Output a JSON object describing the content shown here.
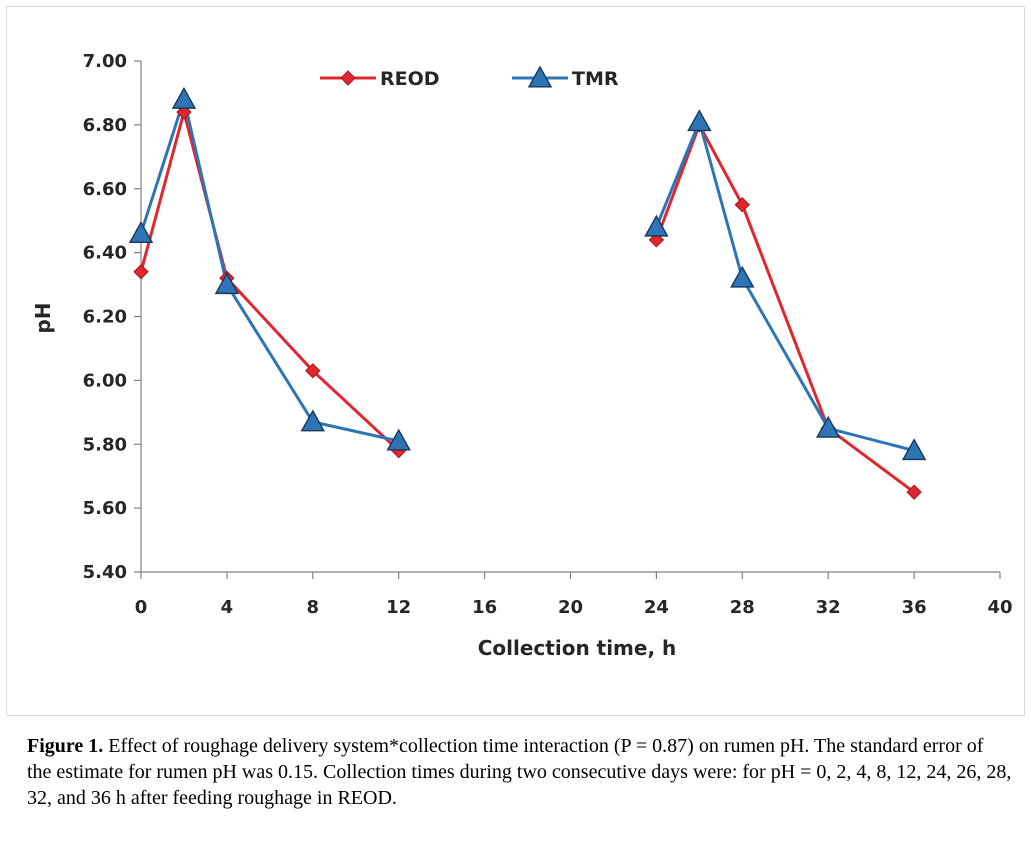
{
  "chart_data": {
    "type": "line",
    "title": "",
    "xlabel": "Collection time, h",
    "ylabel": "pH",
    "xlim": [
      0,
      40
    ],
    "ylim": [
      5.4,
      7.0
    ],
    "x_ticks": [
      "0",
      "4",
      "8",
      "12",
      "16",
      "20",
      "24",
      "28",
      "32",
      "36",
      "40"
    ],
    "y_ticks": [
      "5.40",
      "5.60",
      "5.80",
      "6.00",
      "6.20",
      "6.40",
      "6.60",
      "6.80",
      "7.00"
    ],
    "grid": false,
    "legend_position": "top",
    "series": [
      {
        "name": "REOD",
        "color": "#e0262e",
        "marker": "diamond",
        "segments": [
          [
            [
              0,
              6.34
            ],
            [
              2,
              6.84
            ],
            [
              4,
              6.32
            ],
            [
              8,
              6.03
            ],
            [
              12,
              5.78
            ]
          ],
          [
            [
              24,
              6.44
            ],
            [
              26,
              6.8
            ],
            [
              28,
              6.55
            ],
            [
              32,
              5.85
            ],
            [
              36,
              5.65
            ]
          ]
        ]
      },
      {
        "name": "TMR",
        "color": "#2e75b6",
        "marker": "triangle",
        "segments": [
          [
            [
              0,
              6.46
            ],
            [
              2,
              6.88
            ],
            [
              4,
              6.3
            ],
            [
              8,
              5.87
            ],
            [
              12,
              5.81
            ]
          ],
          [
            [
              24,
              6.48
            ],
            [
              26,
              6.81
            ],
            [
              28,
              6.32
            ],
            [
              32,
              5.85
            ],
            [
              36,
              5.78
            ]
          ]
        ]
      }
    ]
  },
  "caption": {
    "label": "Figure 1.",
    "text": " Effect of roughage delivery system*collection time interaction (P = 0.87) on rumen pH. The standard error of the estimate for rumen pH was 0.15. Collection times during two consecutive days were: for pH = 0, 2, 4, 8, 12, 24, 26, 28, 32, and 36 h after feeding roughage in REOD."
  }
}
